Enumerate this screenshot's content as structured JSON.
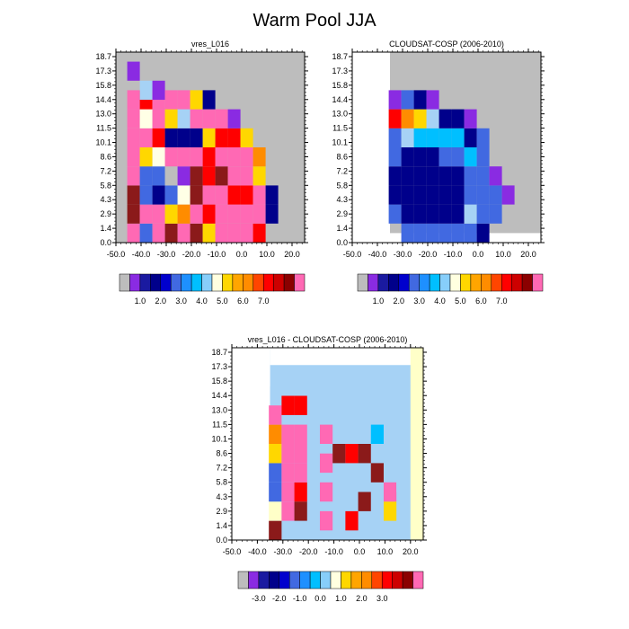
{
  "figure": {
    "title": "Warm Pool JJA"
  },
  "scale_palette": [
    "#bdbdbd",
    "#8a2be2",
    "#1a1aa0",
    "#00008b",
    "#0000cd",
    "#4169e1",
    "#1e90ff",
    "#00bfff",
    "#87cefa",
    "#ffffe0",
    "#ffd700",
    "#ffa500",
    "#ff8c00",
    "#ff4500",
    "#ff0000",
    "#cd0000",
    "#8b0000",
    "#ff69b4"
  ],
  "chart_data": [
    {
      "type": "heatmap",
      "title": "vres_L016",
      "x_ticks": [
        "-50.0",
        "-40.0",
        "-30.0",
        "-20.0",
        "-10.0",
        "0.0",
        "10.0",
        "20.0"
      ],
      "y_ticks": [
        "0.0",
        "1.4",
        "2.9",
        "4.3",
        "5.8",
        "7.2",
        "8.6",
        "10.1",
        "11.5",
        "13.0",
        "14.4",
        "15.8",
        "17.3",
        "18.7"
      ],
      "xlim": [
        -50,
        25
      ],
      "ylim": [
        0,
        20
      ],
      "colorbar_labels": [
        "1.0",
        "2.0",
        "3.0",
        "4.0",
        "5.0",
        "6.0",
        "7.0"
      ],
      "approx_cells": [
        {
          "x": -43,
          "y": 1,
          "v": "pink"
        },
        {
          "x": -43,
          "y": 3,
          "v": "darkred"
        },
        {
          "x": -43,
          "y": 5,
          "v": "darkred"
        },
        {
          "x": -43,
          "y": 7,
          "v": "pink"
        },
        {
          "x": -43,
          "y": 9,
          "v": "pink"
        },
        {
          "x": -43,
          "y": 11,
          "v": "pink"
        },
        {
          "x": -43,
          "y": 13,
          "v": "pink"
        },
        {
          "x": -43,
          "y": 15,
          "v": "pink"
        },
        {
          "x": -43,
          "y": 18,
          "v": "purple"
        },
        {
          "x": -38,
          "y": 1,
          "v": "blue"
        },
        {
          "x": -38,
          "y": 3,
          "v": "pink"
        },
        {
          "x": -38,
          "y": 5,
          "v": "blue"
        },
        {
          "x": -38,
          "y": 7,
          "v": "blue"
        },
        {
          "x": -38,
          "y": 9,
          "v": "yellow"
        },
        {
          "x": -38,
          "y": 11,
          "v": "pink"
        },
        {
          "x": -38,
          "y": 13,
          "v": "white"
        },
        {
          "x": -38,
          "y": 15,
          "v": "red"
        },
        {
          "x": -38,
          "y": 16,
          "v": "lightblue"
        },
        {
          "x": -33,
          "y": 1,
          "v": "pink"
        },
        {
          "x": -33,
          "y": 3,
          "v": "pink"
        },
        {
          "x": -33,
          "y": 5,
          "v": "darkblue"
        },
        {
          "x": -33,
          "y": 7,
          "v": "blue"
        },
        {
          "x": -33,
          "y": 9,
          "v": "white"
        },
        {
          "x": -33,
          "y": 11,
          "v": "red"
        },
        {
          "x": -33,
          "y": 13,
          "v": "pink"
        },
        {
          "x": -33,
          "y": 15,
          "v": "pink"
        },
        {
          "x": -33,
          "y": 16,
          "v": "purple"
        },
        {
          "x": -28,
          "y": 1,
          "v": "darkred"
        },
        {
          "x": -28,
          "y": 3,
          "v": "yellow"
        },
        {
          "x": -28,
          "y": 5,
          "v": "blue"
        },
        {
          "x": -28,
          "y": 7,
          "v": "gray"
        },
        {
          "x": -28,
          "y": 9,
          "v": "pink"
        },
        {
          "x": -28,
          "y": 11,
          "v": "darkblue"
        },
        {
          "x": -28,
          "y": 13,
          "v": "yellow"
        },
        {
          "x": -28,
          "y": 15,
          "v": "pink"
        },
        {
          "x": -23,
          "y": 1,
          "v": "pink"
        },
        {
          "x": -23,
          "y": 3,
          "v": "orange"
        },
        {
          "x": -23,
          "y": 5,
          "v": "white"
        },
        {
          "x": -23,
          "y": 7,
          "v": "purple"
        },
        {
          "x": -23,
          "y": 9,
          "v": "pink"
        },
        {
          "x": -23,
          "y": 11,
          "v": "darkblue"
        },
        {
          "x": -23,
          "y": 13,
          "v": "lightblue"
        },
        {
          "x": -23,
          "y": 15,
          "v": "pink"
        },
        {
          "x": -18,
          "y": 1,
          "v": "darkred"
        },
        {
          "x": -18,
          "y": 3,
          "v": "pink"
        },
        {
          "x": -18,
          "y": 5,
          "v": "darkred"
        },
        {
          "x": -18,
          "y": 7,
          "v": "darkred"
        },
        {
          "x": -18,
          "y": 9,
          "v": "pink"
        },
        {
          "x": -18,
          "y": 11,
          "v": "darkblue"
        },
        {
          "x": -18,
          "y": 13,
          "v": "pink"
        },
        {
          "x": -18,
          "y": 15,
          "v": "yellow"
        },
        {
          "x": -13,
          "y": 1,
          "v": "yellow"
        },
        {
          "x": -13,
          "y": 3,
          "v": "red"
        },
        {
          "x": -13,
          "y": 5,
          "v": "pink"
        },
        {
          "x": -13,
          "y": 7,
          "v": "red"
        },
        {
          "x": -13,
          "y": 9,
          "v": "red"
        },
        {
          "x": -13,
          "y": 11,
          "v": "yellow"
        },
        {
          "x": -13,
          "y": 13,
          "v": "pink"
        },
        {
          "x": -13,
          "y": 15,
          "v": "darkblue"
        },
        {
          "x": -8,
          "y": 1,
          "v": "pink"
        },
        {
          "x": -8,
          "y": 3,
          "v": "pink"
        },
        {
          "x": -8,
          "y": 5,
          "v": "pink"
        },
        {
          "x": -8,
          "y": 7,
          "v": "darkred"
        },
        {
          "x": -8,
          "y": 9,
          "v": "pink"
        },
        {
          "x": -8,
          "y": 11,
          "v": "red"
        },
        {
          "x": -8,
          "y": 13,
          "v": "pink"
        },
        {
          "x": -3,
          "y": 1,
          "v": "pink"
        },
        {
          "x": -3,
          "y": 3,
          "v": "pink"
        },
        {
          "x": -3,
          "y": 5,
          "v": "red"
        },
        {
          "x": -3,
          "y": 7,
          "v": "pink"
        },
        {
          "x": -3,
          "y": 9,
          "v": "pink"
        },
        {
          "x": -3,
          "y": 11,
          "v": "red"
        },
        {
          "x": -3,
          "y": 13,
          "v": "purple"
        },
        {
          "x": 2,
          "y": 1,
          "v": "pink"
        },
        {
          "x": 2,
          "y": 3,
          "v": "pink"
        },
        {
          "x": 2,
          "y": 5,
          "v": "red"
        },
        {
          "x": 2,
          "y": 7,
          "v": "pink"
        },
        {
          "x": 2,
          "y": 9,
          "v": "pink"
        },
        {
          "x": 2,
          "y": 11,
          "v": "yellow"
        },
        {
          "x": 7,
          "y": 1,
          "v": "red"
        },
        {
          "x": 7,
          "y": 3,
          "v": "pink"
        },
        {
          "x": 7,
          "y": 5,
          "v": "pink"
        },
        {
          "x": 7,
          "y": 7,
          "v": "yellow"
        },
        {
          "x": 7,
          "y": 9,
          "v": "orange"
        },
        {
          "x": 12,
          "y": 3,
          "v": "darkblue"
        },
        {
          "x": 12,
          "y": 5,
          "v": "darkblue"
        }
      ]
    },
    {
      "type": "heatmap",
      "title": "CLOUDSAT-COSP (2006-2010)",
      "x_ticks": [
        "-50.0",
        "-40.0",
        "-30.0",
        "-20.0",
        "-10.0",
        "0.0",
        "10.0",
        "20.0"
      ],
      "y_ticks": [
        "0.0",
        "1.4",
        "2.9",
        "4.3",
        "5.8",
        "7.2",
        "8.6",
        "10.1",
        "11.5",
        "13.0",
        "14.4",
        "15.8",
        "17.3",
        "18.7"
      ],
      "xlim": [
        -50,
        25
      ],
      "ylim": [
        0,
        20
      ],
      "colorbar_labels": [
        "1.0",
        "2.0",
        "3.0",
        "4.0",
        "5.0",
        "6.0",
        "7.0"
      ],
      "approx_cells": [
        {
          "x": -33,
          "y": 3,
          "v": "blue"
        },
        {
          "x": -33,
          "y": 5,
          "v": "darkblue"
        },
        {
          "x": -33,
          "y": 7,
          "v": "darkblue"
        },
        {
          "x": -33,
          "y": 9,
          "v": "blue"
        },
        {
          "x": -33,
          "y": 11,
          "v": "blue"
        },
        {
          "x": -33,
          "y": 13,
          "v": "red"
        },
        {
          "x": -33,
          "y": 15,
          "v": "purple"
        },
        {
          "x": -28,
          "y": 1,
          "v": "blue"
        },
        {
          "x": -28,
          "y": 3,
          "v": "darkblue"
        },
        {
          "x": -28,
          "y": 5,
          "v": "darkblue"
        },
        {
          "x": -28,
          "y": 7,
          "v": "darkblue"
        },
        {
          "x": -28,
          "y": 9,
          "v": "darkblue"
        },
        {
          "x": -28,
          "y": 11,
          "v": "lightblue"
        },
        {
          "x": -28,
          "y": 13,
          "v": "orange"
        },
        {
          "x": -28,
          "y": 15,
          "v": "blue"
        },
        {
          "x": -23,
          "y": 1,
          "v": "blue"
        },
        {
          "x": -23,
          "y": 3,
          "v": "darkblue"
        },
        {
          "x": -23,
          "y": 5,
          "v": "darkblue"
        },
        {
          "x": -23,
          "y": 7,
          "v": "darkblue"
        },
        {
          "x": -23,
          "y": 9,
          "v": "darkblue"
        },
        {
          "x": -23,
          "y": 11,
          "v": "skyblue"
        },
        {
          "x": -23,
          "y": 13,
          "v": "yellow"
        },
        {
          "x": -23,
          "y": 15,
          "v": "darkblue"
        },
        {
          "x": -18,
          "y": 1,
          "v": "blue"
        },
        {
          "x": -18,
          "y": 3,
          "v": "darkblue"
        },
        {
          "x": -18,
          "y": 5,
          "v": "darkblue"
        },
        {
          "x": -18,
          "y": 7,
          "v": "darkblue"
        },
        {
          "x": -18,
          "y": 9,
          "v": "darkblue"
        },
        {
          "x": -18,
          "y": 11,
          "v": "skyblue"
        },
        {
          "x": -18,
          "y": 13,
          "v": "lightblue"
        },
        {
          "x": -18,
          "y": 15,
          "v": "purple"
        },
        {
          "x": -13,
          "y": 1,
          "v": "blue"
        },
        {
          "x": -13,
          "y": 3,
          "v": "darkblue"
        },
        {
          "x": -13,
          "y": 5,
          "v": "darkblue"
        },
        {
          "x": -13,
          "y": 7,
          "v": "darkblue"
        },
        {
          "x": -13,
          "y": 9,
          "v": "blue"
        },
        {
          "x": -13,
          "y": 11,
          "v": "skyblue"
        },
        {
          "x": -13,
          "y": 13,
          "v": "darkblue"
        },
        {
          "x": -8,
          "y": 1,
          "v": "blue"
        },
        {
          "x": -8,
          "y": 3,
          "v": "darkblue"
        },
        {
          "x": -8,
          "y": 5,
          "v": "darkblue"
        },
        {
          "x": -8,
          "y": 7,
          "v": "darkblue"
        },
        {
          "x": -8,
          "y": 9,
          "v": "blue"
        },
        {
          "x": -8,
          "y": 11,
          "v": "skyblue"
        },
        {
          "x": -8,
          "y": 13,
          "v": "darkblue"
        },
        {
          "x": -3,
          "y": 1,
          "v": "blue"
        },
        {
          "x": -3,
          "y": 3,
          "v": "lightblue"
        },
        {
          "x": -3,
          "y": 5,
          "v": "blue"
        },
        {
          "x": -3,
          "y": 7,
          "v": "blue"
        },
        {
          "x": -3,
          "y": 9,
          "v": "skyblue"
        },
        {
          "x": -3,
          "y": 11,
          "v": "darkblue"
        },
        {
          "x": -3,
          "y": 13,
          "v": "purple"
        },
        {
          "x": 2,
          "y": 1,
          "v": "darkblue"
        },
        {
          "x": 2,
          "y": 3,
          "v": "blue"
        },
        {
          "x": 2,
          "y": 5,
          "v": "blue"
        },
        {
          "x": 2,
          "y": 7,
          "v": "blue"
        },
        {
          "x": 2,
          "y": 9,
          "v": "blue"
        },
        {
          "x": 2,
          "y": 11,
          "v": "blue"
        },
        {
          "x": 7,
          "y": 3,
          "v": "blue"
        },
        {
          "x": 7,
          "y": 5,
          "v": "blue"
        },
        {
          "x": 7,
          "y": 7,
          "v": "purple"
        },
        {
          "x": 12,
          "y": 5,
          "v": "purple"
        }
      ]
    },
    {
      "type": "heatmap",
      "title": "vres_L016 - CLOUDSAT-COSP (2006-2010)",
      "x_ticks": [
        "-50.0",
        "-40.0",
        "-30.0",
        "-20.0",
        "-10.0",
        "0.0",
        "10.0",
        "20.0"
      ],
      "y_ticks": [
        "0.0",
        "1.4",
        "2.9",
        "4.3",
        "5.8",
        "7.2",
        "8.6",
        "10.1",
        "11.5",
        "13.0",
        "14.4",
        "15.8",
        "17.3",
        "18.7"
      ],
      "xlim": [
        -50,
        25
      ],
      "ylim": [
        0,
        20
      ],
      "colorbar_labels": [
        "-3.0",
        "-2.0",
        "-1.0",
        "0.0",
        "1.0",
        "2.0",
        "3.0"
      ],
      "approx_cells": [
        {
          "x": -33,
          "y": 1,
          "v": "darkred"
        },
        {
          "x": -33,
          "y": 3,
          "v": "lightyellow"
        },
        {
          "x": -33,
          "y": 5,
          "v": "blue"
        },
        {
          "x": -33,
          "y": 7,
          "v": "blue"
        },
        {
          "x": -33,
          "y": 9,
          "v": "yellow"
        },
        {
          "x": -33,
          "y": 11,
          "v": "orange"
        },
        {
          "x": -33,
          "y": 13,
          "v": "pink"
        },
        {
          "x": -28,
          "y": 3,
          "v": "pink"
        },
        {
          "x": -28,
          "y": 5,
          "v": "pink"
        },
        {
          "x": -28,
          "y": 7,
          "v": "pink"
        },
        {
          "x": -28,
          "y": 9,
          "v": "pink"
        },
        {
          "x": -28,
          "y": 11,
          "v": "pink"
        },
        {
          "x": -28,
          "y": 14,
          "v": "red"
        },
        {
          "x": -23,
          "y": 3,
          "v": "darkred"
        },
        {
          "x": -23,
          "y": 5,
          "v": "red"
        },
        {
          "x": -23,
          "y": 7,
          "v": "pink"
        },
        {
          "x": -23,
          "y": 9,
          "v": "pink"
        },
        {
          "x": -23,
          "y": 11,
          "v": "pink"
        },
        {
          "x": -23,
          "y": 14,
          "v": "red"
        },
        {
          "x": -13,
          "y": 2,
          "v": "pink"
        },
        {
          "x": -13,
          "y": 5,
          "v": "pink"
        },
        {
          "x": -13,
          "y": 8,
          "v": "pink"
        },
        {
          "x": -13,
          "y": 11,
          "v": "pink"
        },
        {
          "x": -8,
          "y": 9,
          "v": "darkred"
        },
        {
          "x": -3,
          "y": 9,
          "v": "red"
        },
        {
          "x": -3,
          "y": 2,
          "v": "red"
        },
        {
          "x": 2,
          "y": 9,
          "v": "darkred"
        },
        {
          "x": 2,
          "y": 4,
          "v": "darkred"
        },
        {
          "x": 7,
          "y": 7,
          "v": "darkred"
        },
        {
          "x": 7,
          "y": 11,
          "v": "skyblue"
        },
        {
          "x": 12,
          "y": 3,
          "v": "yellow"
        },
        {
          "x": 12,
          "y": 5,
          "v": "pink"
        },
        {
          "x": 17,
          "y": 6,
          "v": "lightblue"
        },
        {
          "x": 17,
          "y": 12,
          "v": "lightblue"
        }
      ]
    }
  ],
  "colorbar_top": [
    "#bdbdbd",
    "#8a2be2",
    "#1a1aa0",
    "#00008b",
    "#0000cd",
    "#4169e1",
    "#1e90ff",
    "#00bfff",
    "#87cefa",
    "#ffffe0",
    "#ffd700",
    "#ffa500",
    "#ff8c00",
    "#ff4500",
    "#ff0000",
    "#cd0000",
    "#8b0000",
    "#ff69b4"
  ],
  "colorbar_diff": [
    "#bdbdbd",
    "#8a2be2",
    "#1a1aa0",
    "#00008b",
    "#0000cd",
    "#4169e1",
    "#1e90ff",
    "#00bfff",
    "#87cefa",
    "#ffffe0",
    "#ffd700",
    "#ffa500",
    "#ff8c00",
    "#ff4500",
    "#ff0000",
    "#cd0000",
    "#8b0000",
    "#ff69b4"
  ]
}
